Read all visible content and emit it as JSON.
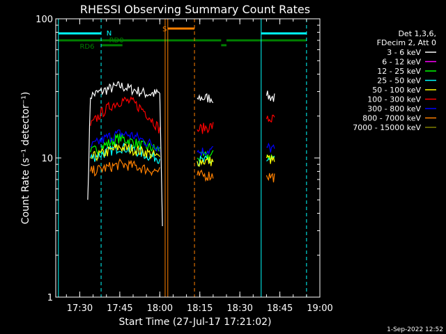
{
  "chart_data": {
    "type": "line",
    "title": "RHESSI Observing Summary Count Rates",
    "xlabel": "Start Time (27-Jul-17 17:21:02)",
    "ylabel": "Count Rate (s⁻¹ detector⁻¹)",
    "y_scale": "log",
    "ylim": [
      1,
      100
    ],
    "xlim": [
      "17:21",
      "19:00"
    ],
    "x_ticks": [
      "17:30",
      "17:45",
      "18:00",
      "18:15",
      "18:30",
      "18:45",
      "19:00"
    ],
    "y_ticks": [
      "1",
      "10",
      "100"
    ],
    "grid": false,
    "legend_position": "top-right",
    "legend_header": [
      "Det 1,3,6,",
      "FDecim 2, Att 0"
    ],
    "series": [
      {
        "name": "3 - 6 keV",
        "color": "#ffffff",
        "x": [
          "17:33",
          "17:34",
          "17:36",
          "17:40",
          "17:45",
          "17:50",
          "17:55",
          "18:00",
          "18:01",
          "18:14",
          "18:20",
          "18:30",
          "18:40",
          "18:43"
        ],
        "y": [
          5,
          28,
          29,
          31,
          33,
          31,
          29,
          29,
          3,
          27,
          27,
          28,
          28,
          27
        ]
      },
      {
        "name": "6 - 12 keV",
        "color": "#ff00ff",
        "x": [],
        "y": []
      },
      {
        "name": "12 - 25 keV",
        "color": "#00ff00",
        "x": [
          "17:34",
          "17:40",
          "17:45",
          "17:50",
          "17:55",
          "18:00",
          "18:14",
          "18:20",
          "18:30",
          "18:40",
          "18:43"
        ],
        "y": [
          11,
          12.5,
          14,
          13,
          12,
          11.5,
          10,
          10.5,
          11,
          10.5,
          10
        ]
      },
      {
        "name": "25 - 50 keV",
        "color": "#00ffff",
        "x": [
          "17:34",
          "17:40",
          "17:45",
          "17:50",
          "17:55",
          "18:00",
          "18:14",
          "18:20",
          "18:30",
          "18:40",
          "18:43"
        ],
        "y": [
          10,
          11,
          12,
          11.5,
          10.5,
          10,
          9.5,
          9.5,
          10,
          9.5,
          9.5
        ]
      },
      {
        "name": "50 - 100 keV",
        "color": "#ffff00",
        "x": [
          "17:34",
          "17:40",
          "17:45",
          "17:50",
          "17:55",
          "18:00",
          "18:14",
          "18:20",
          "18:30",
          "18:40",
          "18:43"
        ],
        "y": [
          10,
          11,
          12,
          11.5,
          11,
          10,
          9.5,
          9.5,
          10,
          10,
          9.5
        ]
      },
      {
        "name": "100 - 300 keV",
        "color": "#ff0000",
        "x": [
          "17:34",
          "17:38",
          "17:42",
          "17:46",
          "17:50",
          "17:54",
          "17:58",
          "18:00",
          "18:14",
          "18:20",
          "18:30",
          "18:40",
          "18:43"
        ],
        "y": [
          17,
          21,
          24,
          26,
          25,
          22,
          18,
          16,
          16,
          17,
          18,
          19,
          19
        ]
      },
      {
        "name": "300 - 800 keV",
        "color": "#0000ff",
        "x": [
          "17:34",
          "17:40",
          "17:45",
          "17:50",
          "17:55",
          "18:00",
          "18:14",
          "18:20",
          "18:30",
          "18:40",
          "18:43"
        ],
        "y": [
          12,
          14,
          15,
          14.5,
          13,
          12,
          11,
          11.5,
          12,
          12,
          11.5
        ]
      },
      {
        "name": "800 - 7000 keV",
        "color": "#ff8000",
        "x": [
          "17:34",
          "17:40",
          "17:45",
          "17:50",
          "17:55",
          "18:00",
          "18:14",
          "18:20",
          "18:30",
          "18:40",
          "18:43"
        ],
        "y": [
          8,
          8.5,
          9,
          8.8,
          8.3,
          8,
          7.5,
          7.5,
          7.8,
          7.5,
          7.3
        ]
      },
      {
        "name": "7000 - 15000 keV",
        "color": "#808000",
        "x": [],
        "y": []
      }
    ],
    "annotations": [
      {
        "label": "N",
        "color": "#00ffff"
      },
      {
        "label": "RD0",
        "color": "#008000"
      },
      {
        "label": "RD6",
        "color": "#008000"
      },
      {
        "label": "S",
        "color": "#ff8000"
      }
    ],
    "timestamp": "1-Sep-2022 12:52"
  }
}
